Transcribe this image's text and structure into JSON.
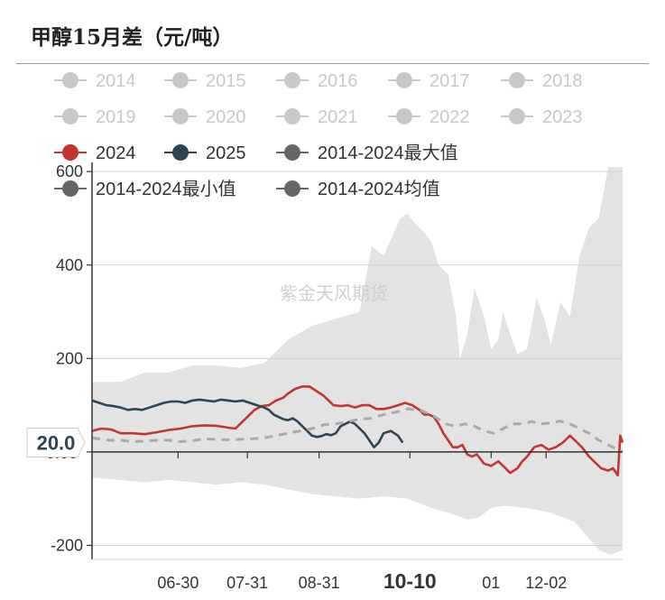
{
  "page": {
    "title": "甲醇15月差（元/吨）"
  },
  "watermark": "紫金天风期货",
  "colors": {
    "inactive": "#c8c8c8",
    "y2024": "#c23531",
    "y2025": "#2f4554",
    "stat": "#666666",
    "band": "#e3e3e3",
    "avg_line": "#aaaaaa"
  },
  "legend": [
    {
      "label": "2014",
      "active": false
    },
    {
      "label": "2015",
      "active": false
    },
    {
      "label": "2016",
      "active": false
    },
    {
      "label": "2017",
      "active": false
    },
    {
      "label": "2018",
      "active": false
    },
    {
      "label": "2019",
      "active": false
    },
    {
      "label": "2020",
      "active": false
    },
    {
      "label": "2021",
      "active": false
    },
    {
      "label": "2022",
      "active": false
    },
    {
      "label": "2023",
      "active": false
    },
    {
      "label": "2024",
      "active": true,
      "color": "#c23531"
    },
    {
      "label": "2025",
      "active": true,
      "color": "#2f4554"
    },
    {
      "label": "2014-2024最大值",
      "active": true,
      "color": "#666666"
    },
    {
      "label": "2014-2024最小值",
      "active": true,
      "color": "#666666"
    },
    {
      "label": "2014-2024均值",
      "active": true,
      "color": "#666666"
    }
  ],
  "chart_data": {
    "type": "line",
    "title": "甲醇15月差（元/吨）",
    "x_tick_labels": [
      "06-30",
      "07-31",
      "08-31",
      "10-10",
      "01",
      "12-02"
    ],
    "x_tick_positions": [
      7.4,
      10.3,
      13.3,
      17.1,
      20.5,
      22.8
    ],
    "highlight_x_label": "10-10",
    "y_ticks": [
      -200,
      200,
      400,
      600
    ],
    "y_zero_label": "0.00",
    "ylim": [
      -230,
      610
    ],
    "xlim": [
      3.8,
      26
    ],
    "pointer_value": "20.0",
    "band_upper": [
      [
        3.8,
        150
      ],
      [
        5,
        150
      ],
      [
        6,
        170
      ],
      [
        7,
        170
      ],
      [
        8,
        185
      ],
      [
        9,
        185
      ],
      [
        10,
        180
      ],
      [
        11,
        190
      ],
      [
        12,
        240
      ],
      [
        13,
        270
      ],
      [
        14,
        285
      ],
      [
        15,
        300
      ],
      [
        15.5,
        440
      ],
      [
        16,
        420
      ],
      [
        16.7,
        500
      ],
      [
        17,
        510
      ],
      [
        17.3,
        490
      ],
      [
        17.7,
        470
      ],
      [
        18,
        450
      ],
      [
        18.3,
        400
      ],
      [
        18.7,
        380
      ],
      [
        19,
        300
      ],
      [
        19.2,
        200
      ],
      [
        19.5,
        250
      ],
      [
        19.8,
        350
      ],
      [
        20.2,
        290
      ],
      [
        20.5,
        220
      ],
      [
        20.8,
        240
      ],
      [
        21,
        300
      ],
      [
        21.3,
        250
      ],
      [
        21.6,
        210
      ],
      [
        22,
        220
      ],
      [
        22.4,
        330
      ],
      [
        22.7,
        290
      ],
      [
        23,
        230
      ],
      [
        23.4,
        320
      ],
      [
        23.8,
        290
      ],
      [
        24.2,
        420
      ],
      [
        24.6,
        480
      ],
      [
        25,
        500
      ],
      [
        25.4,
        610
      ],
      [
        26,
        610
      ]
    ],
    "band_lower": [
      [
        3.8,
        -55
      ],
      [
        5,
        -60
      ],
      [
        6,
        -65
      ],
      [
        7,
        -60
      ],
      [
        8,
        -65
      ],
      [
        9,
        -70
      ],
      [
        10,
        -65
      ],
      [
        11,
        -70
      ],
      [
        12,
        -80
      ],
      [
        13,
        -90
      ],
      [
        14,
        -95
      ],
      [
        15,
        -100
      ],
      [
        16,
        -95
      ],
      [
        17,
        -100
      ],
      [
        18,
        -120
      ],
      [
        19,
        -135
      ],
      [
        19.5,
        -145
      ],
      [
        20,
        -140
      ],
      [
        20.5,
        -120
      ],
      [
        21,
        -115
      ],
      [
        22,
        -120
      ],
      [
        23,
        -130
      ],
      [
        24,
        -150
      ],
      [
        24.5,
        -180
      ],
      [
        25,
        -210
      ],
      [
        25.5,
        -220
      ],
      [
        26,
        -210
      ]
    ],
    "series": [
      {
        "name": "2024",
        "color": "#c23531",
        "points": [
          [
            3.8,
            45
          ],
          [
            4.2,
            50
          ],
          [
            4.6,
            48
          ],
          [
            5,
            40
          ],
          [
            5.5,
            40
          ],
          [
            6,
            38
          ],
          [
            6.5,
            42
          ],
          [
            7,
            47
          ],
          [
            7.5,
            50
          ],
          [
            8,
            55
          ],
          [
            8.5,
            57
          ],
          [
            9,
            56
          ],
          [
            9.5,
            52
          ],
          [
            9.8,
            50
          ],
          [
            10,
            60
          ],
          [
            10.3,
            75
          ],
          [
            10.6,
            90
          ],
          [
            10.9,
            98
          ],
          [
            11.2,
            100
          ],
          [
            11.5,
            110
          ],
          [
            11.8,
            116
          ],
          [
            12,
            125
          ],
          [
            12.3,
            135
          ],
          [
            12.6,
            140
          ],
          [
            12.9,
            140
          ],
          [
            13.2,
            130
          ],
          [
            13.5,
            120
          ],
          [
            13.7,
            110
          ],
          [
            13.9,
            100
          ],
          [
            14.2,
            98
          ],
          [
            14.5,
            100
          ],
          [
            14.8,
            95
          ],
          [
            15.1,
            100
          ],
          [
            15.4,
            100
          ],
          [
            15.7,
            92
          ],
          [
            16,
            92
          ],
          [
            16.3,
            95
          ],
          [
            16.6,
            100
          ],
          [
            16.9,
            105
          ],
          [
            17.2,
            100
          ],
          [
            17.5,
            90
          ],
          [
            17.7,
            80
          ],
          [
            17.9,
            80
          ],
          [
            18.1,
            75
          ],
          [
            18.3,
            60
          ],
          [
            18.5,
            40
          ],
          [
            18.7,
            25
          ],
          [
            18.9,
            10
          ],
          [
            19.1,
            10
          ],
          [
            19.3,
            15
          ],
          [
            19.5,
            -5
          ],
          [
            19.7,
            -10
          ],
          [
            19.9,
            -5
          ],
          [
            20.2,
            -25
          ],
          [
            20.5,
            -30
          ],
          [
            20.8,
            -20
          ],
          [
            21,
            -30
          ],
          [
            21.3,
            -45
          ],
          [
            21.6,
            -35
          ],
          [
            21.8,
            -20
          ],
          [
            22,
            -10
          ],
          [
            22.3,
            10
          ],
          [
            22.6,
            15
          ],
          [
            22.9,
            5
          ],
          [
            23.2,
            10
          ],
          [
            23.5,
            20
          ],
          [
            23.8,
            35
          ],
          [
            24.1,
            20
          ],
          [
            24.3,
            10
          ],
          [
            24.6,
            -10
          ],
          [
            24.9,
            -25
          ],
          [
            25.1,
            -35
          ],
          [
            25.4,
            -40
          ],
          [
            25.6,
            -35
          ],
          [
            25.8,
            -50
          ],
          [
            25.9,
            35
          ],
          [
            26,
            20
          ]
        ]
      },
      {
        "name": "2025",
        "color": "#2f4554",
        "points": [
          [
            3.8,
            110
          ],
          [
            4.1,
            105
          ],
          [
            4.4,
            100
          ],
          [
            4.7,
            98
          ],
          [
            5,
            95
          ],
          [
            5.3,
            90
          ],
          [
            5.6,
            92
          ],
          [
            5.9,
            90
          ],
          [
            6.2,
            95
          ],
          [
            6.5,
            100
          ],
          [
            6.8,
            105
          ],
          [
            7.1,
            108
          ],
          [
            7.4,
            108
          ],
          [
            7.7,
            105
          ],
          [
            8,
            110
          ],
          [
            8.3,
            112
          ],
          [
            8.6,
            110
          ],
          [
            8.9,
            108
          ],
          [
            9.2,
            112
          ],
          [
            9.5,
            110
          ],
          [
            9.8,
            108
          ],
          [
            10.1,
            110
          ],
          [
            10.4,
            105
          ],
          [
            10.7,
            100
          ],
          [
            11,
            95
          ],
          [
            11.2,
            90
          ],
          [
            11.4,
            80
          ],
          [
            11.6,
            75
          ],
          [
            11.8,
            70
          ],
          [
            12,
            68
          ],
          [
            12.2,
            72
          ],
          [
            12.4,
            65
          ],
          [
            12.6,
            55
          ],
          [
            12.8,
            45
          ],
          [
            13,
            35
          ],
          [
            13.2,
            32
          ],
          [
            13.4,
            34
          ],
          [
            13.6,
            38
          ],
          [
            13.8,
            36
          ],
          [
            14,
            40
          ],
          [
            14.2,
            55
          ],
          [
            14.4,
            60
          ],
          [
            14.6,
            65
          ],
          [
            14.8,
            60
          ],
          [
            15,
            50
          ],
          [
            15.2,
            40
          ],
          [
            15.4,
            25
          ],
          [
            15.6,
            10
          ],
          [
            15.8,
            20
          ],
          [
            16,
            40
          ],
          [
            16.3,
            45
          ],
          [
            16.6,
            35
          ],
          [
            16.8,
            20
          ]
        ]
      },
      {
        "name": "2014-2024均值",
        "color": "#aaaaaa",
        "dashed": true,
        "points": [
          [
            3.8,
            30
          ],
          [
            4.5,
            25
          ],
          [
            5,
            25
          ],
          [
            5.5,
            22
          ],
          [
            6,
            23
          ],
          [
            6.5,
            25
          ],
          [
            7,
            25
          ],
          [
            7.5,
            22
          ],
          [
            8,
            24
          ],
          [
            8.5,
            28
          ],
          [
            9,
            27
          ],
          [
            9.5,
            26
          ],
          [
            10,
            27
          ],
          [
            10.5,
            28
          ],
          [
            11,
            30
          ],
          [
            11.5,
            35
          ],
          [
            12,
            40
          ],
          [
            12.5,
            45
          ],
          [
            13,
            50
          ],
          [
            13.5,
            58
          ],
          [
            14,
            60
          ],
          [
            14.5,
            65
          ],
          [
            15,
            70
          ],
          [
            15.5,
            72
          ],
          [
            16,
            80
          ],
          [
            16.5,
            85
          ],
          [
            17,
            92
          ],
          [
            17.5,
            90
          ],
          [
            18,
            80
          ],
          [
            18.3,
            70
          ],
          [
            18.6,
            60
          ],
          [
            19,
            55
          ],
          [
            19.4,
            60
          ],
          [
            19.8,
            55
          ],
          [
            20.2,
            45
          ],
          [
            20.6,
            40
          ],
          [
            21,
            50
          ],
          [
            21.4,
            60
          ],
          [
            21.8,
            60
          ],
          [
            22.2,
            65
          ],
          [
            22.6,
            60
          ],
          [
            23,
            62
          ],
          [
            23.4,
            66
          ],
          [
            23.8,
            60
          ],
          [
            24.2,
            50
          ],
          [
            24.6,
            40
          ],
          [
            25,
            25
          ],
          [
            25.4,
            15
          ],
          [
            25.8,
            5
          ],
          [
            26,
            0
          ]
        ]
      }
    ]
  }
}
